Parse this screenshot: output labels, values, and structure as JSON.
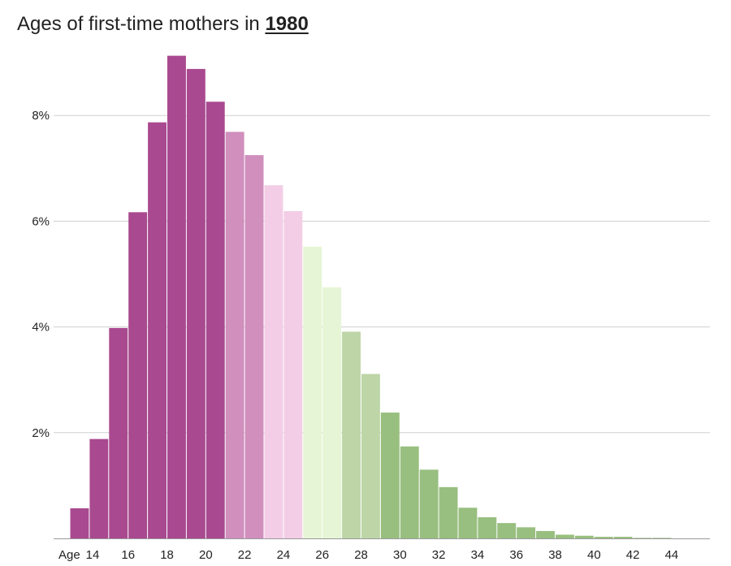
{
  "title": {
    "prefix": "Ages of first-time mothers in",
    "year": "1980"
  },
  "chart_data": {
    "type": "bar",
    "title": "Ages of first-time mothers in 1980",
    "x_axis_prefix": "Age",
    "ages": [
      14,
      15,
      16,
      17,
      18,
      19,
      20,
      21,
      22,
      23,
      24,
      25,
      26,
      27,
      28,
      29,
      30,
      31,
      32,
      33,
      34,
      35,
      36,
      37,
      38,
      39,
      40,
      41,
      42,
      43,
      44
    ],
    "values": [
      0.57,
      1.88,
      3.98,
      6.17,
      7.87,
      9.13,
      8.88,
      8.26,
      7.69,
      7.25,
      6.68,
      6.19,
      5.52,
      4.75,
      3.91,
      3.11,
      2.38,
      1.74,
      1.3,
      0.97,
      0.58,
      0.4,
      0.29,
      0.21,
      0.14,
      0.07,
      0.05,
      0.03,
      0.03,
      0.01,
      0.01
    ],
    "colors": [
      "#a94990",
      "#a94990",
      "#a94990",
      "#a94990",
      "#a94990",
      "#a94990",
      "#a94990",
      "#a94990",
      "#d08fbd",
      "#d08fbd",
      "#f3cde6",
      "#f3cde6",
      "#e6f5d5",
      "#e6f5d5",
      "#bed5a7",
      "#bed5a7",
      "#98bf7f",
      "#98bf7f",
      "#98bf7f",
      "#98bf7f",
      "#98bf7f",
      "#98bf7f",
      "#98bf7f",
      "#98bf7f",
      "#98bf7f",
      "#98bf7f",
      "#98bf7f",
      "#98bf7f",
      "#98bf7f",
      "#98bf7f",
      "#98bf7f"
    ],
    "y_ticks": [
      2,
      4,
      6,
      8
    ],
    "y_tick_labels": [
      "2%",
      "4%",
      "6%",
      "8%"
    ],
    "x_tick_labels": [
      {
        "age": 14,
        "label": "14"
      },
      {
        "age": 16,
        "label": "16"
      },
      {
        "age": 18,
        "label": "18"
      },
      {
        "age": 20,
        "label": "20"
      },
      {
        "age": 22,
        "label": "22"
      },
      {
        "age": 24,
        "label": "24"
      },
      {
        "age": 26,
        "label": "26"
      },
      {
        "age": 28,
        "label": "28"
      },
      {
        "age": 30,
        "label": "30"
      },
      {
        "age": 32,
        "label": "32"
      },
      {
        "age": 34,
        "label": "34"
      },
      {
        "age": 36,
        "label": "36"
      },
      {
        "age": 38,
        "label": "38"
      },
      {
        "age": 40,
        "label": "40"
      },
      {
        "age": 42,
        "label": "42"
      },
      {
        "age": 44,
        "label": "44"
      }
    ],
    "ylim": [
      0,
      9.2
    ],
    "grid": true,
    "colors_note": "purple-to-green diverging palette"
  }
}
